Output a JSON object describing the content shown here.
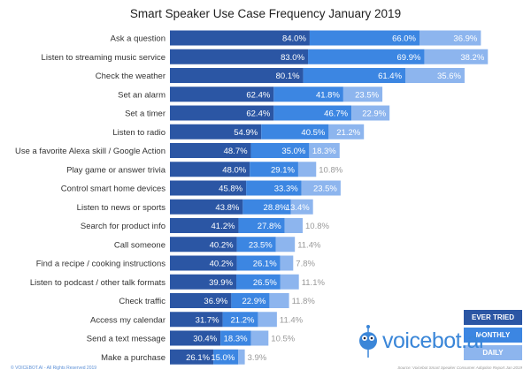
{
  "chart_data": {
    "type": "bar",
    "orientation": "horizontal",
    "stacked": true,
    "title": "Smart Speaker Use Case Frequency January 2019",
    "categories": [
      "Ask a question",
      "Listen to streaming music service",
      "Check the weather",
      "Set an alarm",
      "Set a timer",
      "Listen to radio",
      "Use a favorite Alexa skill / Google Action",
      "Play game or answer trivia",
      "Control smart home devices",
      "Listen to news or sports",
      "Search for product info",
      "Call someone",
      "Find a recipe / cooking instructions",
      "Listen to podcast / other talk formats",
      "Check traffic",
      "Access my calendar",
      "Send a text message",
      "Make a purchase"
    ],
    "series": [
      {
        "name": "EVER TRIED",
        "color": "#2b56a4",
        "values": [
          84.0,
          83.0,
          80.1,
          62.4,
          62.4,
          54.9,
          48.7,
          48.0,
          45.8,
          43.8,
          41.2,
          40.2,
          40.2,
          39.9,
          36.9,
          31.7,
          30.4,
          26.1
        ]
      },
      {
        "name": "MONTHLY",
        "color": "#3c86e2",
        "values": [
          66.0,
          69.9,
          61.4,
          41.8,
          46.7,
          40.5,
          35.0,
          29.1,
          33.3,
          28.8,
          27.8,
          23.5,
          26.1,
          26.5,
          22.9,
          21.2,
          18.3,
          15.0
        ]
      },
      {
        "name": "DAILY",
        "color": "#8db5ee",
        "values": [
          36.9,
          38.2,
          35.6,
          23.5,
          22.9,
          21.2,
          18.3,
          10.8,
          23.5,
          13.4,
          10.8,
          11.4,
          7.8,
          11.1,
          11.8,
          11.4,
          10.5,
          3.9
        ]
      }
    ],
    "legend_position": "bottom-right",
    "grid": false
  },
  "footer": {
    "copyright": "© VOICEBOT.AI - All Rights Reserved 2019",
    "source": "Source: Voicebot Smart Speaker Consumer Adoption Report Jan 2019"
  },
  "logo": {
    "text": "voicebot.ai"
  }
}
